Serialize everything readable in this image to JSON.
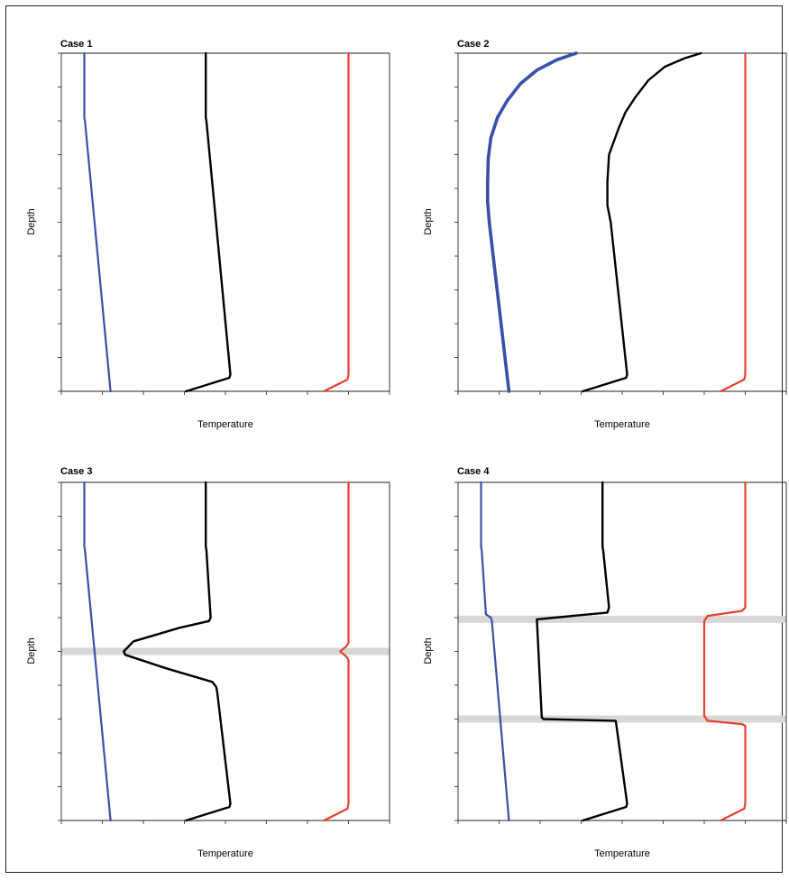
{
  "chart_data": [
    {
      "type": "line",
      "title": "Case 1",
      "xlabel": "Temperature",
      "ylabel": "Depth",
      "xlim": [
        0,
        100
      ],
      "ylim": [
        0,
        100
      ],
      "y_inverted": true,
      "grid": false,
      "bands": [],
      "series": [
        {
          "color": "#3a4fa8",
          "x": [
            7,
            7,
            7.2,
            15
          ],
          "y": [
            0,
            19,
            20,
            100
          ]
        },
        {
          "color": "#000000",
          "x": [
            44,
            44,
            44.2,
            51.5,
            51.2,
            38
          ],
          "y": [
            0,
            19,
            20,
            95,
            96,
            100
          ]
        },
        {
          "color": "#e8402f",
          "x": [
            87.5,
            87.5,
            87.2,
            80
          ],
          "y": [
            0,
            95,
            96.5,
            100
          ]
        }
      ]
    },
    {
      "type": "line",
      "title": "Case 2",
      "xlabel": "Temperature",
      "ylabel": "Depth",
      "xlim": [
        0,
        100
      ],
      "ylim": [
        0,
        100
      ],
      "y_inverted": true,
      "grid": false,
      "bands": [],
      "series": [
        {
          "color": "#3a4fa8",
          "width": 3.6,
          "x": [
            36,
            30,
            24,
            19,
            15,
            12,
            10,
            9.2,
            9,
            9,
            9.5,
            15.5
          ],
          "y": [
            0,
            2,
            5,
            9,
            14,
            19,
            25,
            31,
            38,
            44,
            50,
            100
          ]
        },
        {
          "color": "#000000",
          "x": [
            74,
            69,
            63,
            58,
            54,
            51,
            49,
            46,
            45.5,
            45.5,
            46.5,
            51.5,
            51.2,
            38
          ],
          "y": [
            0,
            1.5,
            4,
            8,
            13,
            17.5,
            22,
            30,
            38,
            45,
            50,
            95,
            96,
            100
          ]
        },
        {
          "color": "#e8402f",
          "x": [
            87.5,
            87.5,
            87.2,
            80
          ],
          "y": [
            0,
            95,
            96.5,
            100
          ]
        }
      ]
    },
    {
      "type": "line",
      "title": "Case 3",
      "xlabel": "Temperature",
      "ylabel": "Depth",
      "xlim": [
        0,
        100
      ],
      "ylim": [
        0,
        100
      ],
      "y_inverted": true,
      "grid": false,
      "bands": [
        50
      ],
      "series": [
        {
          "color": "#3a4fa8",
          "x": [
            7,
            7,
            7.2,
            15
          ],
          "y": [
            0,
            19,
            20,
            100
          ]
        },
        {
          "color": "#000000",
          "x": [
            44,
            44,
            44.2,
            45.5,
            45,
            36,
            22,
            19.5,
            19,
            19.5,
            32,
            46,
            47.2,
            47.5,
            51.5,
            51.2,
            38
          ],
          "y": [
            0,
            19,
            20,
            40,
            41,
            43,
            47,
            49.5,
            50,
            51,
            55,
            59,
            60.5,
            62,
            95,
            96,
            100
          ]
        },
        {
          "color": "#e8402f",
          "x": [
            87.5,
            87.5,
            86.8,
            85,
            86.8,
            87.5,
            87.5,
            87.2,
            80
          ],
          "y": [
            0,
            47.5,
            48.5,
            50,
            51.5,
            52.5,
            95,
            96.5,
            100
          ]
        }
      ]
    },
    {
      "type": "line",
      "title": "Case 4",
      "xlabel": "Temperature",
      "ylabel": "Depth",
      "xlim": [
        0,
        100
      ],
      "ylim": [
        0,
        100
      ],
      "y_inverted": true,
      "grid": false,
      "bands": [
        40.5,
        70
      ],
      "series": [
        {
          "color": "#3a4fa8",
          "x": [
            7,
            7,
            7.2,
            8.5,
            10,
            10.3,
            15.5
          ],
          "y": [
            0,
            19,
            20,
            39,
            40,
            41,
            100
          ]
        },
        {
          "color": "#000000",
          "x": [
            44,
            44,
            44.2,
            46,
            45.5,
            24,
            25.5,
            26,
            48,
            48.2,
            51.5,
            51.2,
            38
          ],
          "y": [
            0,
            19,
            20,
            37,
            38.5,
            40.5,
            69.5,
            70,
            70.5,
            71.5,
            95,
            96,
            100
          ]
        },
        {
          "color": "#e8402f",
          "x": [
            87.5,
            87.5,
            86.5,
            76,
            75,
            75,
            76,
            86.5,
            87.5,
            87.5,
            87.2,
            80
          ],
          "y": [
            0,
            37,
            38,
            39.5,
            41,
            69,
            70.5,
            71.5,
            72,
            95,
            96.5,
            100
          ]
        }
      ]
    }
  ]
}
